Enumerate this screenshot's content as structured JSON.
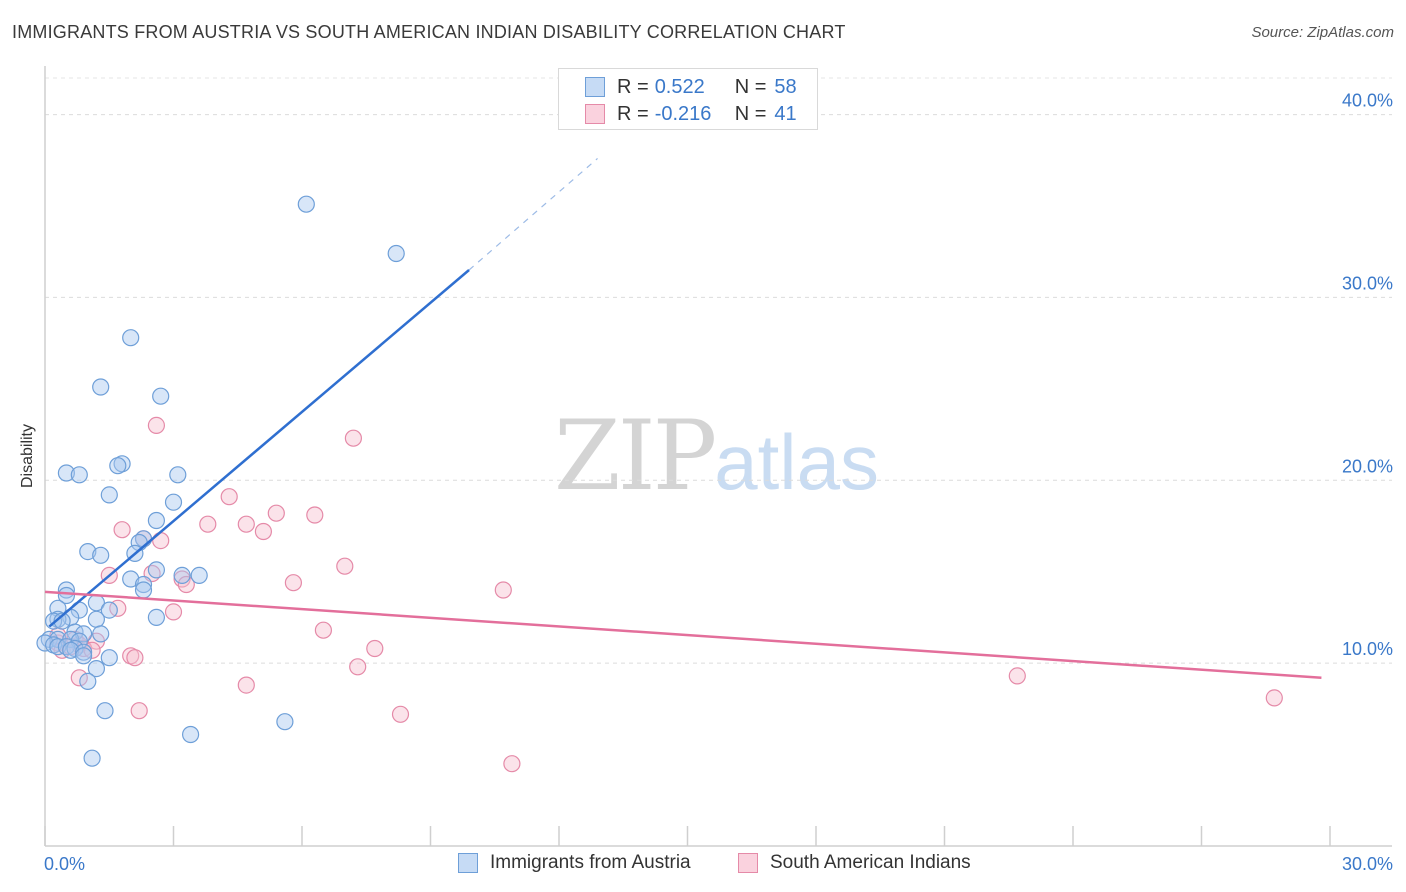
{
  "header": {
    "title": "IMMIGRANTS FROM AUSTRIA VS SOUTH AMERICAN INDIAN DISABILITY CORRELATION CHART",
    "source": "Source: ZipAtlas.com"
  },
  "watermark": {
    "zip": "ZIP",
    "atlas": "atlas"
  },
  "legend": {
    "rows": [
      {
        "r_label": "R =",
        "r_value": "0.522",
        "n_label": "N =",
        "n_value": "58",
        "color": "#a9c8ef",
        "stroke": "#6e9fd8"
      },
      {
        "r_label": "R =",
        "r_value": "-0.216",
        "n_label": "N =",
        "n_value": "41",
        "color": "#f6c0d0",
        "stroke": "#e58aa8"
      }
    ]
  },
  "chart_data": {
    "type": "scatter",
    "title": "IMMIGRANTS FROM AUSTRIA VS SOUTH AMERICAN INDIAN DISABILITY CORRELATION CHART",
    "xlabel": "",
    "ylabel": "Disability",
    "xlim": [
      0,
      30
    ],
    "ylim": [
      0,
      42
    ],
    "x_tick_labels": [
      "0.0%",
      "30.0%"
    ],
    "y_ticks": [
      10,
      20,
      30,
      40
    ],
    "y_tick_labels": [
      "10.0%",
      "20.0%",
      "30.0%",
      "40.0%"
    ],
    "grid": true,
    "legend_position": "top-center",
    "series": [
      {
        "name": "Immigrants from Austria",
        "color": "#a9c8ef",
        "stroke": "#6e9fd8",
        "trend_color": "#2f6fd0",
        "trend": {
          "x0": 0.1,
          "y0": 12.0,
          "x1": 9.9,
          "y1": 31.5,
          "dash_to_x": 12.9,
          "dash_to_y": 37.6
        },
        "points": [
          [
            6.1,
            35.1
          ],
          [
            8.2,
            32.4
          ],
          [
            2.0,
            27.8
          ],
          [
            1.3,
            25.1
          ],
          [
            2.7,
            24.6
          ],
          [
            0.5,
            20.4
          ],
          [
            0.8,
            20.3
          ],
          [
            1.8,
            20.9
          ],
          [
            1.7,
            20.8
          ],
          [
            3.1,
            20.3
          ],
          [
            1.5,
            19.2
          ],
          [
            3.0,
            18.8
          ],
          [
            2.6,
            17.8
          ],
          [
            2.3,
            16.8
          ],
          [
            2.2,
            16.6
          ],
          [
            1.0,
            16.1
          ],
          [
            1.3,
            15.9
          ],
          [
            2.1,
            16.0
          ],
          [
            2.6,
            15.1
          ],
          [
            3.2,
            14.8
          ],
          [
            3.6,
            14.8
          ],
          [
            2.0,
            14.6
          ],
          [
            2.3,
            14.3
          ],
          [
            2.3,
            14.0
          ],
          [
            0.5,
            14.0
          ],
          [
            0.5,
            13.7
          ],
          [
            1.2,
            13.3
          ],
          [
            0.3,
            13.0
          ],
          [
            0.8,
            12.9
          ],
          [
            2.6,
            12.5
          ],
          [
            1.5,
            12.9
          ],
          [
            0.6,
            12.5
          ],
          [
            0.3,
            12.4
          ],
          [
            0.2,
            12.3
          ],
          [
            0.4,
            12.3
          ],
          [
            1.2,
            12.4
          ],
          [
            0.7,
            11.7
          ],
          [
            0.9,
            11.6
          ],
          [
            1.3,
            11.6
          ],
          [
            0.1,
            11.3
          ],
          [
            0.3,
            11.3
          ],
          [
            0.6,
            11.3
          ],
          [
            0.8,
            11.2
          ],
          [
            0.0,
            11.1
          ],
          [
            0.2,
            11.0
          ],
          [
            0.3,
            10.9
          ],
          [
            0.5,
            10.9
          ],
          [
            0.7,
            10.8
          ],
          [
            0.6,
            10.7
          ],
          [
            0.9,
            10.6
          ],
          [
            0.9,
            10.4
          ],
          [
            1.5,
            10.3
          ],
          [
            1.2,
            9.7
          ],
          [
            1.0,
            9.0
          ],
          [
            1.4,
            7.4
          ],
          [
            5.6,
            6.8
          ],
          [
            3.4,
            6.1
          ],
          [
            1.1,
            4.8
          ]
        ]
      },
      {
        "name": "South American Indians",
        "color": "#f6c0d0",
        "stroke": "#e58aa8",
        "trend_color": "#e36f9b",
        "trend": {
          "x0": 0.0,
          "y0": 13.9,
          "x1": 29.8,
          "y1": 9.2
        },
        "points": [
          [
            2.6,
            23.0
          ],
          [
            7.2,
            22.3
          ],
          [
            4.3,
            19.1
          ],
          [
            5.4,
            18.2
          ],
          [
            6.3,
            18.1
          ],
          [
            3.8,
            17.6
          ],
          [
            4.7,
            17.6
          ],
          [
            1.8,
            17.3
          ],
          [
            5.1,
            17.2
          ],
          [
            2.3,
            16.8
          ],
          [
            2.7,
            16.7
          ],
          [
            7.0,
            15.3
          ],
          [
            2.5,
            14.9
          ],
          [
            1.5,
            14.8
          ],
          [
            3.2,
            14.6
          ],
          [
            5.8,
            14.4
          ],
          [
            3.3,
            14.3
          ],
          [
            10.7,
            14.0
          ],
          [
            1.7,
            13.0
          ],
          [
            3.0,
            12.8
          ],
          [
            6.5,
            11.8
          ],
          [
            0.7,
            11.3
          ],
          [
            1.2,
            11.2
          ],
          [
            0.3,
            11.1
          ],
          [
            0.8,
            11.0
          ],
          [
            0.9,
            10.8
          ],
          [
            1.1,
            10.7
          ],
          [
            7.7,
            10.8
          ],
          [
            0.4,
            10.7
          ],
          [
            2.0,
            10.4
          ],
          [
            2.1,
            10.3
          ],
          [
            7.3,
            9.8
          ],
          [
            0.8,
            9.2
          ],
          [
            22.7,
            9.3
          ],
          [
            4.7,
            8.8
          ],
          [
            28.7,
            8.1
          ],
          [
            2.2,
            7.4
          ],
          [
            8.3,
            7.2
          ],
          [
            10.9,
            4.5
          ],
          [
            0.3,
            11.5
          ],
          [
            0.6,
            10.9
          ]
        ]
      }
    ]
  }
}
